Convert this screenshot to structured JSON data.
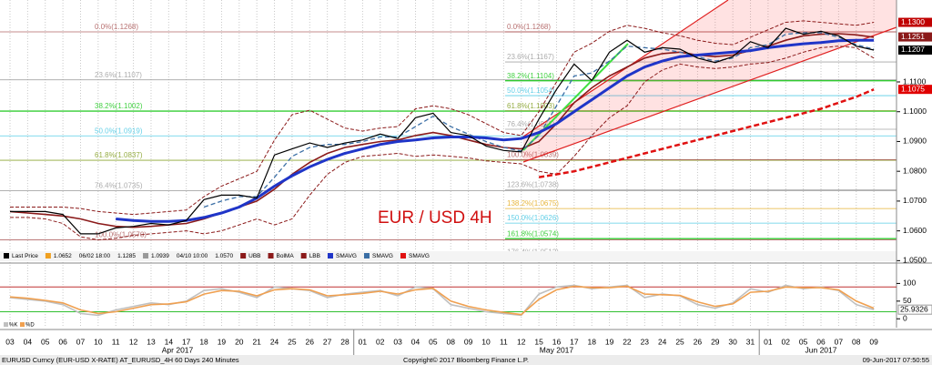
{
  "chart_data": {
    "type": "line",
    "annotation": "EUR / USD 4H",
    "grid": true,
    "categories": [
      "03",
      "04",
      "05",
      "06",
      "07",
      "10",
      "11",
      "12",
      "13",
      "14",
      "17",
      "18",
      "19",
      "20",
      "21",
      "24",
      "25",
      "26",
      "27",
      "28",
      "01",
      "02",
      "03",
      "04",
      "05",
      "08",
      "09",
      "10",
      "11",
      "12",
      "15",
      "16",
      "17",
      "18",
      "19",
      "22",
      "23",
      "24",
      "25",
      "26",
      "29",
      "30",
      "31",
      "01",
      "02",
      "05",
      "06",
      "07",
      "08",
      "09"
    ],
    "months": [
      "Apr 2017",
      "May 2017",
      "Jun 2017"
    ],
    "ylim": [
      1.0495,
      1.1375
    ],
    "yticks": [
      {
        "value": 1.11,
        "label": "1.1100"
      },
      {
        "value": 1.1,
        "label": "1.1000"
      },
      {
        "value": 1.09,
        "label": "1.0900"
      },
      {
        "value": 1.08,
        "label": "1.0800"
      },
      {
        "value": 1.07,
        "label": "1.0700"
      },
      {
        "value": 1.06,
        "label": "1.0600"
      },
      {
        "value": 1.05,
        "label": "1.0500"
      }
    ],
    "price_markers": [
      {
        "value": 1.13,
        "label": "1.1300",
        "color": "#c00000"
      },
      {
        "value": 1.1251,
        "label": "1.1251",
        "color": "#8b1a1a"
      },
      {
        "value": 1.1207,
        "label": "1.1207",
        "color": "#000000"
      },
      {
        "value": 1.1075,
        "label": "1.1075",
        "color": "#e00000"
      }
    ],
    "fib_left": [
      {
        "value": 1.1268,
        "label": "0.0%(1.1268)",
        "color": "#a04040"
      },
      {
        "value": 1.1107,
        "label": "23.6%(1.1107)",
        "color": "#909090"
      },
      {
        "value": 1.1002,
        "label": "38.2%(1.1002)",
        "color": "#00c000"
      },
      {
        "value": 1.0919,
        "label": "50.0%(1.0919)",
        "color": "#30c0e0"
      },
      {
        "value": 1.0837,
        "label": "61.8%(1.0837)",
        "color": "#709000"
      },
      {
        "value": 1.0735,
        "label": "76.4%(1.0735)",
        "color": "#909090"
      },
      {
        "value": 1.057,
        "label": "100.0%(1.0570)",
        "color": "#a04040"
      }
    ],
    "fib_right": [
      {
        "value": 1.1268,
        "label": "0.0%(1.1268)",
        "color": "#a04040"
      },
      {
        "value": 1.1167,
        "label": "23.6%(1.1167)",
        "color": "#909090"
      },
      {
        "value": 1.1104,
        "label": "38.2%(1.1104)",
        "color": "#00c000"
      },
      {
        "value": 1.1054,
        "label": "50.0%(1.1054)",
        "color": "#30c0e0"
      },
      {
        "value": 1.1003,
        "label": "61.8%(1.1003)",
        "color": "#709000"
      },
      {
        "value": 1.0941,
        "label": "76.4%(1.0941)",
        "color": "#909090"
      },
      {
        "value": 1.0839,
        "label": "100.0%(1.0839)",
        "color": "#a04040"
      },
      {
        "value": 1.0738,
        "label": "123.6%(1.0738)",
        "color": "#909090"
      },
      {
        "value": 1.0675,
        "label": "138.2%(1.0675)",
        "color": "#e0a000"
      },
      {
        "value": 1.0626,
        "label": "150.0%(1.0626)",
        "color": "#30c0e0"
      },
      {
        "value": 1.0574,
        "label": "161.8%(1.0574)",
        "color": "#00c000"
      },
      {
        "value": 1.0512,
        "label": "176.4%(1.0512)",
        "color": "#909090"
      }
    ],
    "legend_info": [
      "1.0652",
      "06/02 18:00",
      "1.1285",
      "1.0939",
      "04/10 10:00",
      "1.0570"
    ],
    "series": [
      {
        "name": "Last Price",
        "color": "#000000",
        "width": 1.2,
        "dash": "none",
        "values": [
          1.0665,
          1.0665,
          1.0665,
          1.0655,
          1.059,
          1.059,
          1.061,
          1.0615,
          1.0625,
          1.062,
          1.0635,
          1.0705,
          1.072,
          1.072,
          1.071,
          1.0855,
          1.0875,
          1.0895,
          1.088,
          1.0895,
          1.0905,
          1.0925,
          1.091,
          1.098,
          1.0995,
          1.093,
          1.092,
          1.0885,
          1.087,
          1.0865,
          1.0975,
          1.1075,
          1.116,
          1.1105,
          1.12,
          1.124,
          1.12,
          1.1215,
          1.121,
          1.118,
          1.1165,
          1.1185,
          1.1235,
          1.1215,
          1.128,
          1.126,
          1.127,
          1.1255,
          1.122,
          1.1207
        ]
      },
      {
        "name": "UBB",
        "color": "#8b1a1a",
        "width": 1,
        "dash": "4 2",
        "values": [
          1.068,
          1.068,
          1.068,
          1.068,
          1.0675,
          1.0665,
          1.066,
          1.0655,
          1.066,
          1.0665,
          1.067,
          1.0715,
          1.075,
          1.0775,
          1.08,
          1.0905,
          1.099,
          1.1005,
          1.0975,
          1.0945,
          1.0935,
          1.0945,
          1.095,
          1.101,
          1.102,
          1.101,
          1.099,
          1.096,
          1.093,
          1.092,
          1.1,
          1.11,
          1.12,
          1.123,
          1.127,
          1.129,
          1.128,
          1.1265,
          1.1255,
          1.124,
          1.123,
          1.1225,
          1.125,
          1.1275,
          1.13,
          1.1305,
          1.13,
          1.1295,
          1.129,
          1.13
        ]
      },
      {
        "name": "BolMA",
        "color": "#8b1a1a",
        "width": 1.6,
        "dash": "none",
        "values": [
          1.0665,
          1.066,
          1.0655,
          1.065,
          1.064,
          1.0625,
          1.0615,
          1.0612,
          1.0615,
          1.062,
          1.0625,
          1.064,
          1.066,
          1.068,
          1.07,
          1.074,
          1.079,
          1.083,
          1.086,
          1.088,
          1.089,
          1.09,
          1.0905,
          1.092,
          1.093,
          1.092,
          1.0905,
          1.089,
          1.088,
          1.0875,
          1.09,
          1.096,
          1.103,
          1.108,
          1.112,
          1.115,
          1.118,
          1.1195,
          1.12,
          1.119,
          1.1185,
          1.119,
          1.1205,
          1.122,
          1.124,
          1.1255,
          1.126,
          1.1262,
          1.1258,
          1.125
        ]
      },
      {
        "name": "LBB",
        "color": "#8b1a1a",
        "width": 1,
        "dash": "4 2",
        "values": [
          1.0645,
          1.0645,
          1.064,
          1.0625,
          1.058,
          1.057,
          1.0575,
          1.0585,
          1.059,
          1.0595,
          1.06,
          1.059,
          1.06,
          1.062,
          1.064,
          1.062,
          1.064,
          1.072,
          1.079,
          1.083,
          1.085,
          1.0855,
          1.086,
          1.085,
          1.0855,
          1.085,
          1.0845,
          1.0835,
          1.083,
          1.0825,
          1.08,
          1.079,
          1.085,
          1.092,
          1.098,
          1.102,
          1.11,
          1.114,
          1.116,
          1.115,
          1.1145,
          1.115,
          1.116,
          1.1165,
          1.118,
          1.12,
          1.1215,
          1.122,
          1.1215,
          1.118
        ]
      },
      {
        "name": "SMAVG",
        "color": "#1f35c8",
        "width": 3,
        "dash": "none",
        "values": [
          null,
          null,
          null,
          null,
          null,
          null,
          1.064,
          1.0635,
          1.0632,
          1.0632,
          1.0635,
          1.0645,
          1.066,
          1.068,
          1.071,
          1.075,
          1.0785,
          1.0815,
          1.084,
          1.086,
          1.0875,
          1.089,
          1.09,
          1.0905,
          1.0912,
          1.0915,
          1.0915,
          1.0912,
          1.0905,
          1.091,
          1.093,
          1.096,
          1.1,
          1.104,
          1.108,
          1.112,
          1.115,
          1.117,
          1.1185,
          1.119,
          1.1195,
          1.12,
          1.1205,
          1.1215,
          1.1222,
          1.1228,
          1.1232,
          1.1238,
          1.124,
          1.124
        ]
      },
      {
        "name": "SMAVG",
        "color": "#3a6ea5",
        "width": 1.3,
        "dash": "5 3",
        "values": [
          null,
          null,
          null,
          null,
          null,
          null,
          null,
          null,
          null,
          null,
          null,
          1.068,
          1.07,
          1.0715,
          1.0715,
          1.078,
          1.085,
          1.088,
          1.089,
          1.089,
          1.09,
          1.0915,
          1.0915,
          1.095,
          1.0985,
          1.095,
          1.0925,
          1.09,
          1.088,
          1.0868,
          1.092,
          1.102,
          1.112,
          1.113,
          1.117,
          1.122,
          1.1215,
          1.121,
          1.12,
          1.1185,
          1.117,
          1.118,
          1.1215,
          1.1225,
          1.126,
          1.1265,
          1.1265,
          1.125,
          1.1225,
          1.121
        ]
      },
      {
        "name": "SMAVG",
        "color": "#e01010",
        "width": 2.5,
        "dash": "6 3",
        "values": [
          null,
          null,
          null,
          null,
          null,
          null,
          null,
          null,
          null,
          null,
          null,
          null,
          null,
          null,
          null,
          null,
          null,
          null,
          null,
          null,
          null,
          null,
          null,
          null,
          null,
          null,
          null,
          null,
          null,
          null,
          1.078,
          1.079,
          1.08,
          1.0815,
          1.083,
          1.0845,
          1.086,
          1.0875,
          1.089,
          1.0905,
          1.092,
          1.0935,
          1.095,
          1.0965,
          1.098,
          1.0995,
          1.101,
          1.103,
          1.105,
          1.1075
        ]
      }
    ],
    "stochastic": {
      "ylim": [
        -20,
        150
      ],
      "yticks": [
        100,
        50,
        0
      ],
      "upper_level": 90,
      "lower_level": 20,
      "marker": {
        "value": 25.9326,
        "label": "25.9326"
      },
      "series": [
        {
          "name": "%K",
          "color": "#c0c0c0",
          "values": [
            60,
            55,
            50,
            40,
            15,
            10,
            25,
            35,
            45,
            40,
            50,
            80,
            85,
            75,
            60,
            90,
            85,
            80,
            60,
            70,
            75,
            80,
            65,
            90,
            85,
            40,
            30,
            20,
            15,
            10,
            70,
            90,
            95,
            85,
            90,
            95,
            60,
            70,
            65,
            40,
            30,
            45,
            85,
            75,
            95,
            85,
            90,
            80,
            40,
            25.9326
          ]
        },
        {
          "name": "%D",
          "color": "#f0a050",
          "values": [
            62,
            58,
            52,
            45,
            25,
            15,
            20,
            30,
            40,
            42,
            48,
            70,
            80,
            78,
            65,
            82,
            85,
            82,
            65,
            68,
            72,
            78,
            70,
            82,
            86,
            50,
            35,
            25,
            18,
            12,
            55,
            82,
            92,
            88,
            88,
            92,
            70,
            68,
            66,
            48,
            35,
            42,
            75,
            78,
            90,
            88,
            88,
            82,
            50,
            30
          ]
        }
      ]
    },
    "footer": {
      "left": "EURUSD Curncy (EUR-USD X-RATE) AT_EURUSD_4H 60 Days 240 Minutes",
      "center": "Copyright© 2017 Bloomberg Finance L.P.",
      "right": "09-Jun-2017 07:50:55"
    }
  }
}
